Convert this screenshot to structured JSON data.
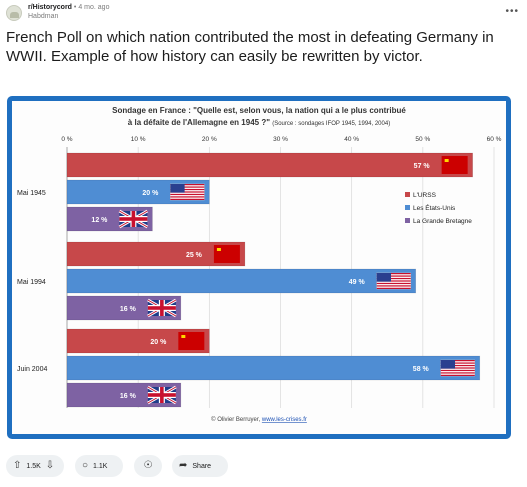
{
  "post": {
    "subreddit": "r/Historycord",
    "separator": "•",
    "age": "4 mo. ago",
    "username": "Habdman",
    "more_icon": "more-horizontal-icon",
    "title": "French Poll on which nation contributed the most in defeating Germany in WWII. Example of how history can easily be rewritten by victor."
  },
  "colors": {
    "frame": "#1f6fc0",
    "ussr": "#c7484a",
    "usa": "#4f8dd3",
    "uk": "#7e62a3"
  },
  "chart_data": {
    "type": "bar",
    "orientation": "horizontal",
    "title_line1": "Sondage en France : \"Quelle est, selon vous, la nation qui a le plus contribué",
    "title_line2": "à la défaite de l'Allemagne en 1945 ?\"",
    "source": "(Source : sondages IFOP 1945, 1994, 2004)",
    "categories": [
      "Mai 1945",
      "Mai 1994",
      "Juin 2004"
    ],
    "xlim": [
      0,
      60
    ],
    "ticks": [
      "0 %",
      "10 %",
      "20 %",
      "30 %",
      "40 %",
      "50 %",
      "60 %"
    ],
    "grid": true,
    "legend_position": "right",
    "series": [
      {
        "name": "L'URSS",
        "values": [
          57,
          25,
          20
        ],
        "labels": [
          "57 %",
          "25 %",
          "20 %"
        ]
      },
      {
        "name": "Les États-Unis",
        "values": [
          20,
          49,
          58
        ],
        "labels": [
          "20 %",
          "49 %",
          "58 %"
        ]
      },
      {
        "name": "La Grande Bretagne",
        "values": [
          12,
          16,
          16
        ],
        "labels": [
          "12 %",
          "16 %",
          "16 %"
        ]
      }
    ],
    "credit": "© Olivier Berruyer, ",
    "credit_link": "www.les-crises.fr"
  },
  "actions": {
    "upvote_icon": "upvote-arrow-icon",
    "vote_count": "1.5K",
    "downvote_icon": "downvote-arrow-icon",
    "comment_icon": "comment-bubble-icon",
    "comment_count": "1.1K",
    "award_icon": "award-icon",
    "share_icon": "share-arrow-icon",
    "share_label": "Share"
  }
}
